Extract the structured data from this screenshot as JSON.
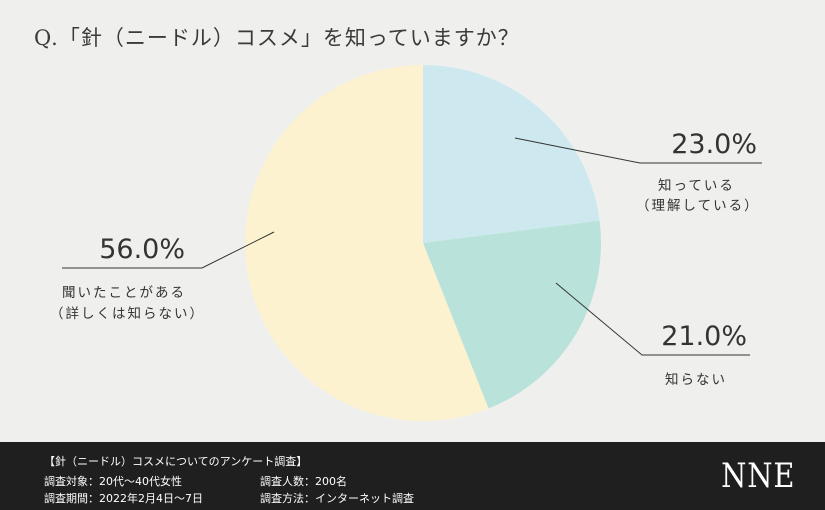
{
  "question": "Q.「針（ニードル）コスメ」を知っていますか？",
  "chart_data": {
    "type": "pie",
    "title": "Q.「針（ニードル）コスメ」を知っていますか？",
    "slices": [
      {
        "pct_label": "23.0%",
        "value": 23.0,
        "label1": "知っている",
        "label2": "（理解している）",
        "color": "#cde9ef"
      },
      {
        "pct_label": "21.0%",
        "value": 21.0,
        "label1": "知らない",
        "label2": "",
        "color": "#b9e3da"
      },
      {
        "pct_label": "56.0%",
        "value": 56.0,
        "label1": "聞いたことがある",
        "label2": "（詳しくは知らない）",
        "color": "#fcf2cf"
      }
    ],
    "start_angle": "12 o'clock",
    "direction": "clockwise"
  },
  "footer": {
    "title": "【針（ニードル）コスメについてのアンケート調査】",
    "target": "調査対象：20代〜40代女性",
    "period": "調査期間：2022年2月4日〜7日",
    "count": "調査人数：200名",
    "method": "調査方法：インターネット調査",
    "logo": "NNE"
  }
}
